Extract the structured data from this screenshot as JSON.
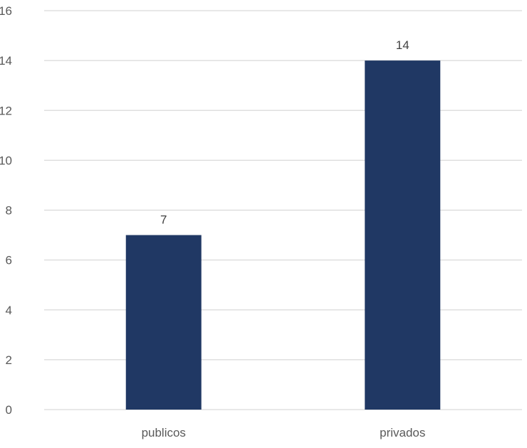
{
  "chart_data": {
    "type": "bar",
    "title": "",
    "xlabel": "",
    "ylabel": "",
    "categories": [
      "publicos",
      "privados"
    ],
    "values": [
      7,
      14
    ],
    "data_labels": [
      "7",
      "14"
    ],
    "ylim": [
      0,
      16
    ],
    "yticks": [
      0,
      2,
      4,
      6,
      8,
      10,
      12,
      14,
      16
    ],
    "grid": true,
    "legend": "none",
    "bar_color": "#203864",
    "grid_color": "#d9d9d9",
    "text_color": "#595959"
  }
}
